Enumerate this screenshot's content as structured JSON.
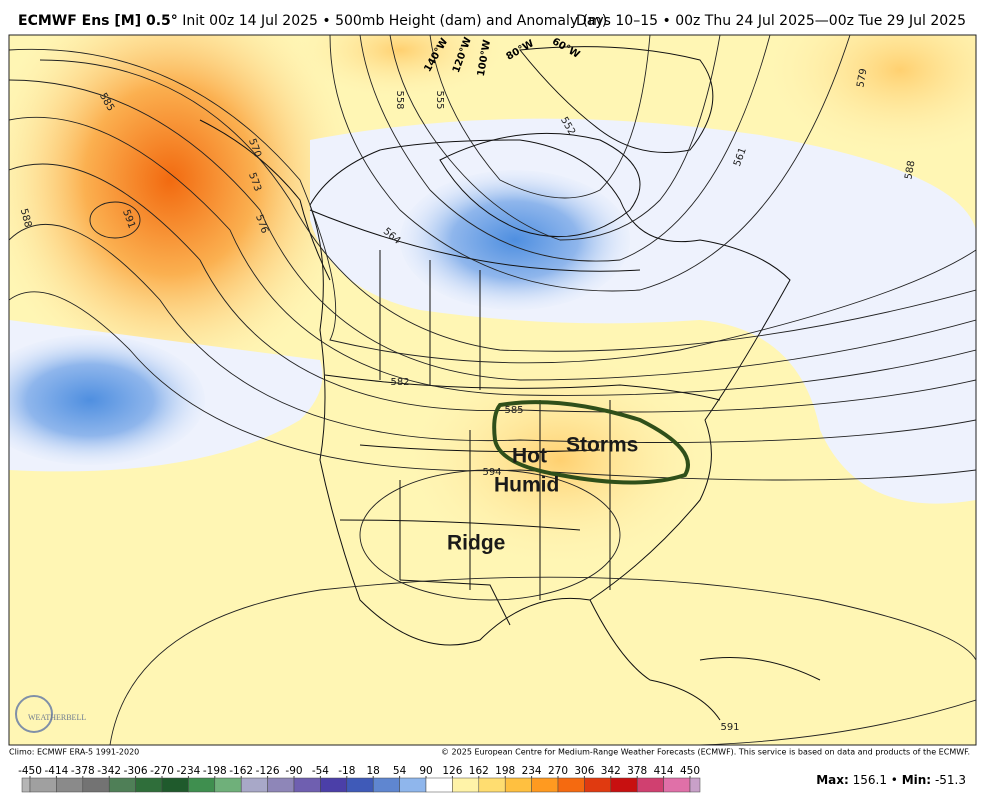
{
  "header": {
    "model": "ECMWF Ens [M] 0.5°",
    "description": "Init 00z 14 Jul 2025 • 500mb Height (dam) and Anomaly (m)",
    "period": "Days 10–15 • 00z Thu 24 Jul 2025—00z Tue 29 Jul 2025"
  },
  "map": {
    "contour_labels": [
      585,
      591,
      588,
      570,
      573,
      576,
      558,
      555,
      552,
      561,
      579,
      588,
      564,
      582,
      585,
      594,
      591
    ],
    "longitude_labels": [
      "140°W",
      "120°W",
      "100°W",
      "80°W",
      "60°W"
    ],
    "annotations": [
      "Storms",
      "Hot",
      "Humid",
      "Ridge"
    ],
    "logo": "WEATHERBELL"
  },
  "footer": {
    "climo": "Climo: ECMWF ERA-5 1991-2020",
    "copyright": "© 2025 European Centre for Medium-Range Weather Forecasts (ECMWF). This service is based on data and products of the ECMWF."
  },
  "colorbar": {
    "ticks": [
      -450,
      -414,
      -378,
      -342,
      -306,
      -270,
      -234,
      -198,
      -162,
      -126,
      -90,
      -54,
      -18,
      18,
      54,
      90,
      126,
      162,
      198,
      234,
      270,
      306,
      342,
      378,
      414,
      450
    ],
    "colors": [
      "#b5b5b5",
      "#a0a0a0",
      "#8a8a8a",
      "#737373",
      "#4f7f57",
      "#2f6e3a",
      "#1f5a2c",
      "#3f8f4f",
      "#6fb07a",
      "#a8a8c8",
      "#8e86b8",
      "#6f5fb0",
      "#4b3fa8",
      "#3f5ab8",
      "#5f86d0",
      "#8fb6ec",
      "#ffffff",
      "#fff3a8",
      "#ffdd70",
      "#ffc040",
      "#ff9a20",
      "#f56a10",
      "#e03a10",
      "#c81010",
      "#d04070",
      "#e070a8",
      "#c8a0c8"
    ],
    "max_label": "Max:",
    "max": 156.1,
    "separator": "•",
    "min_label": "Min:",
    "min": -51.3
  }
}
